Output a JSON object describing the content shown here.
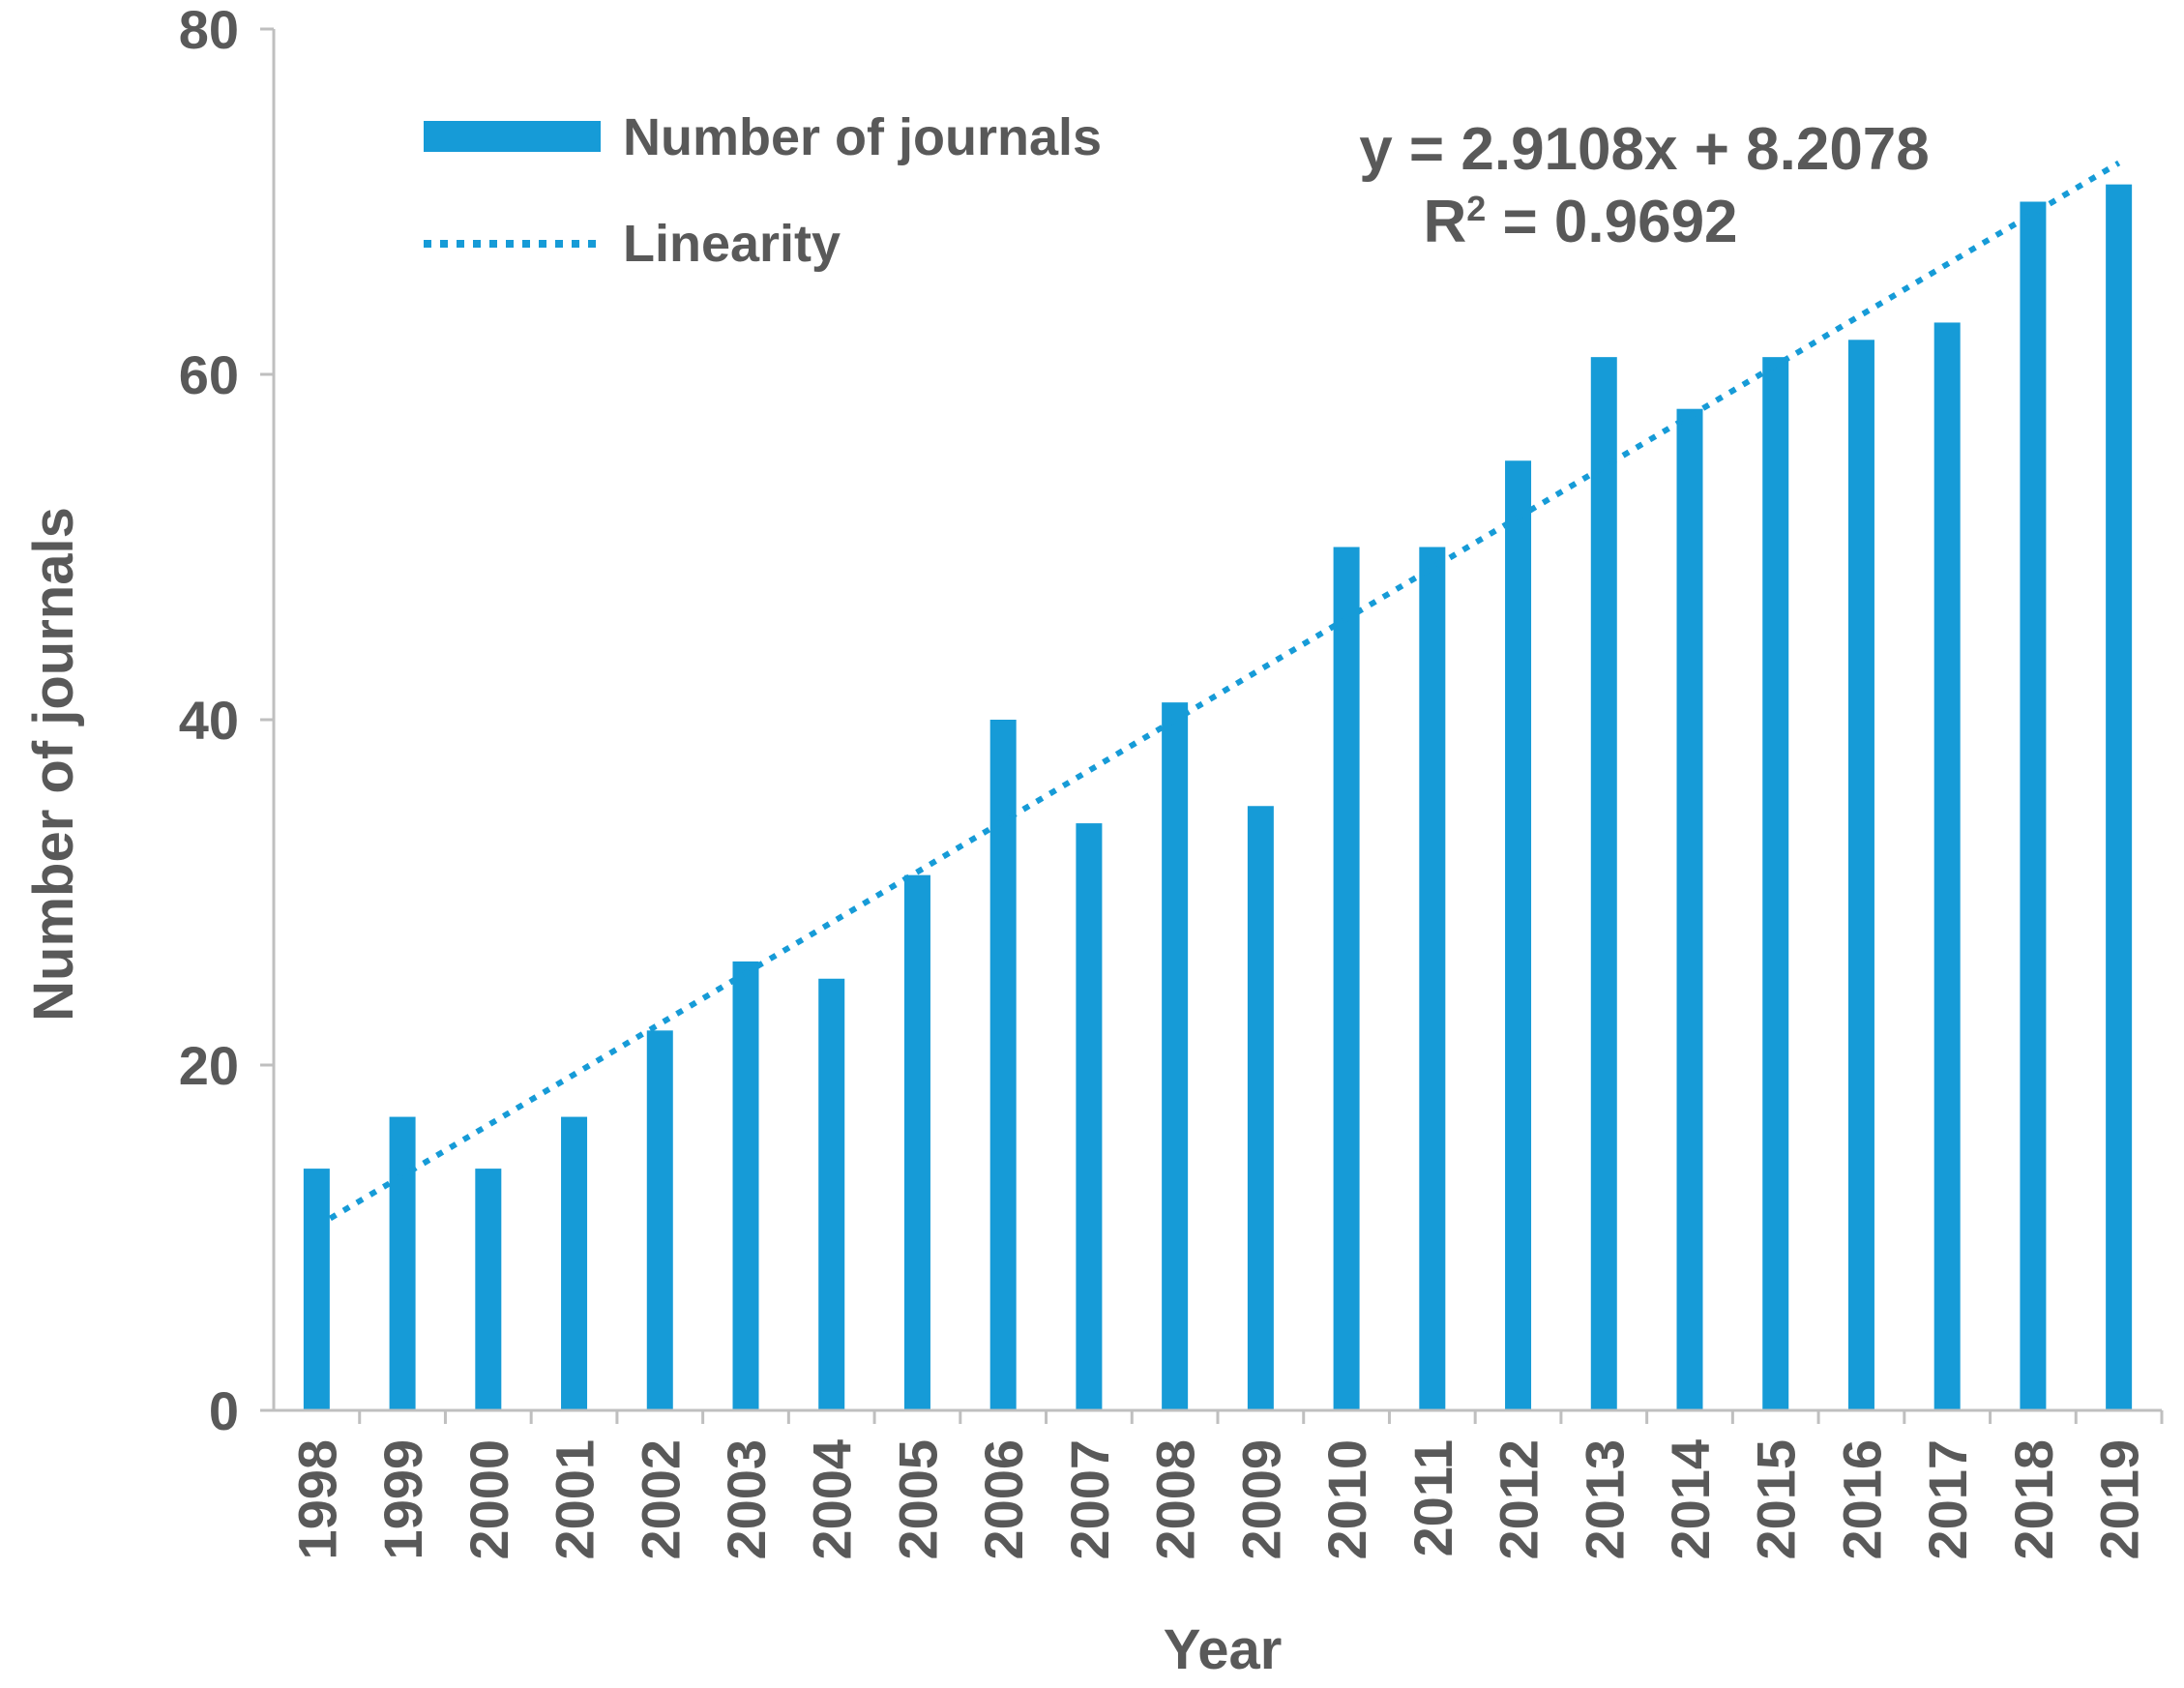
{
  "chart_data": {
    "type": "bar",
    "title": "",
    "xlabel": "Year",
    "ylabel": "Number of journals",
    "ylim": [
      0,
      80
    ],
    "yticks": [
      0,
      20,
      40,
      60,
      80
    ],
    "categories": [
      "1998",
      "1999",
      "2000",
      "2001",
      "2002",
      "2003",
      "2004",
      "2005",
      "2006",
      "2007",
      "2008",
      "2009",
      "2010",
      "2011",
      "2012",
      "2013",
      "2014",
      "2015",
      "2016",
      "2017",
      "2018",
      "2019"
    ],
    "series": [
      {
        "name": "Number of journals",
        "color": "#169bd7",
        "values": [
          14,
          17,
          14,
          17,
          22,
          26,
          25,
          31,
          40,
          34,
          41,
          35,
          50,
          50,
          55,
          61,
          58,
          61,
          62,
          63,
          70,
          71
        ]
      }
    ],
    "trendline": {
      "name": "Linearity",
      "type": "linear",
      "slope": 2.9108,
      "intercept": 8.2078,
      "equation": "y = 2.9108x + 8.2078",
      "r2_prefix": "R",
      "r2_sup": "2",
      "r2_value": " = 0.9692",
      "color": "#169bd7"
    },
    "legend": {
      "position": "top-left",
      "entries": [
        "Number of journals",
        "Linearity"
      ]
    }
  }
}
